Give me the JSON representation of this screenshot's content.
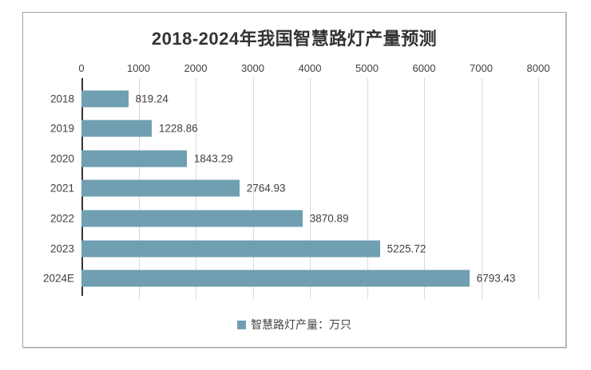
{
  "window": {
    "background": "#FFFFFF",
    "border_color": "#A6A6A6"
  },
  "chart_data": {
    "type": "bar",
    "orientation": "horizontal",
    "title": "2018-2024年我国智慧路灯产量预测",
    "categories": [
      "2018",
      "2019",
      "2020",
      "2021",
      "2022",
      "2023",
      "2024E"
    ],
    "values": [
      819.24,
      1228.86,
      1843.29,
      2764.93,
      3870.89,
      5225.72,
      6793.43
    ],
    "value_labels": [
      "819.24",
      "1228.86",
      "1843.29",
      "2764.93",
      "3870.89",
      "5225.72",
      "6793.43"
    ],
    "x_ticks": [
      0,
      1000,
      2000,
      3000,
      4000,
      5000,
      6000,
      7000,
      8000
    ],
    "xlim": [
      0,
      8000
    ],
    "grid": true,
    "axis_position": "top",
    "legend_position": "bottom",
    "legend": [
      {
        "label": "智慧路灯产量：万只",
        "color": "#6F9FB1"
      }
    ],
    "colors": {
      "bar": "#6F9FB1",
      "title": "#333333",
      "axis_text": "#404040",
      "gridline": "#D9D9D9",
      "axis_line": "#333333"
    }
  }
}
